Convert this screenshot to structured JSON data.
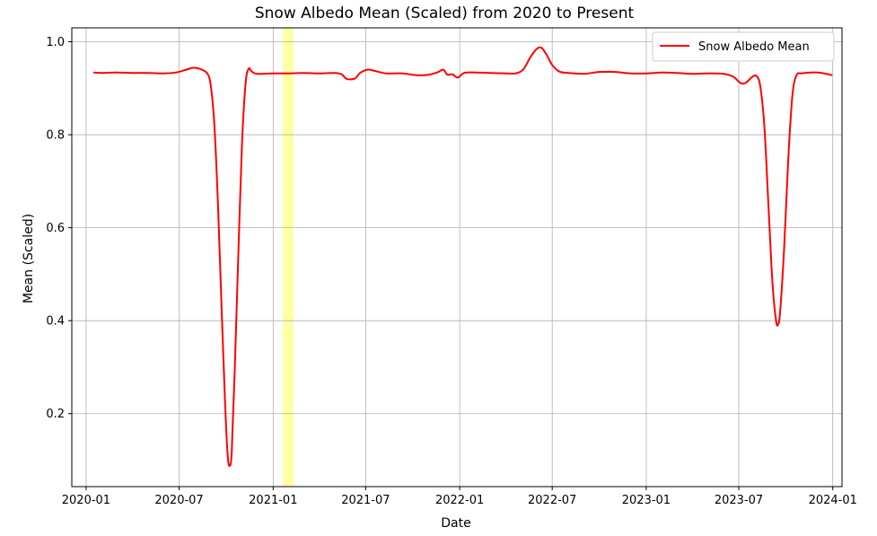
{
  "chart_data": {
    "type": "line",
    "title": "Snow Albedo Mean (Scaled) from 2020 to Present",
    "xlabel": "Date",
    "ylabel": "Mean (Scaled)",
    "xlim": [
      "2019-12-04",
      "2024-01-19"
    ],
    "ylim": [
      0.043,
      1.03
    ],
    "x_ticks": [
      "2020-01",
      "2020-07",
      "2021-01",
      "2021-07",
      "2022-01",
      "2022-07",
      "2023-01",
      "2023-07",
      "2024-01"
    ],
    "y_ticks": [
      0.2,
      0.4,
      0.6,
      0.8,
      1.0
    ],
    "y_tick_labels": [
      "0.2",
      "0.4",
      "0.6",
      "0.8",
      "1.0"
    ],
    "grid": true,
    "legend": {
      "placement": "top-right"
    },
    "highlight_span": {
      "start": "2021-01-20",
      "end": "2021-02-10",
      "color": "#ffff99"
    },
    "series": [
      {
        "name": "Snow Albedo Mean",
        "color": "#ff0000",
        "points": [
          [
            "2020-01-15",
            0.934
          ],
          [
            "2020-02-01",
            0.933
          ],
          [
            "2020-03-01",
            0.934
          ],
          [
            "2020-04-01",
            0.933
          ],
          [
            "2020-05-01",
            0.933
          ],
          [
            "2020-06-01",
            0.932
          ],
          [
            "2020-06-25",
            0.934
          ],
          [
            "2020-07-15",
            0.94
          ],
          [
            "2020-07-28",
            0.944
          ],
          [
            "2020-08-10",
            0.942
          ],
          [
            "2020-08-25",
            0.932
          ],
          [
            "2020-09-01",
            0.905
          ],
          [
            "2020-09-08",
            0.82
          ],
          [
            "2020-09-15",
            0.65
          ],
          [
            "2020-09-22",
            0.43
          ],
          [
            "2020-09-29",
            0.22
          ],
          [
            "2020-10-04",
            0.11
          ],
          [
            "2020-10-08",
            0.088
          ],
          [
            "2020-10-12",
            0.12
          ],
          [
            "2020-10-18",
            0.3
          ],
          [
            "2020-10-25",
            0.55
          ],
          [
            "2020-11-01",
            0.78
          ],
          [
            "2020-11-08",
            0.91
          ],
          [
            "2020-11-14",
            0.942
          ],
          [
            "2020-11-20",
            0.936
          ],
          [
            "2020-12-01",
            0.931
          ],
          [
            "2021-01-01",
            0.932
          ],
          [
            "2021-02-01",
            0.932
          ],
          [
            "2021-03-01",
            0.933
          ],
          [
            "2021-04-01",
            0.932
          ],
          [
            "2021-05-01",
            0.933
          ],
          [
            "2021-05-15",
            0.93
          ],
          [
            "2021-05-25",
            0.92
          ],
          [
            "2021-06-10",
            0.921
          ],
          [
            "2021-06-20",
            0.933
          ],
          [
            "2021-07-05",
            0.94
          ],
          [
            "2021-07-20",
            0.937
          ],
          [
            "2021-08-10",
            0.932
          ],
          [
            "2021-09-10",
            0.932
          ],
          [
            "2021-10-10",
            0.928
          ],
          [
            "2021-11-01",
            0.929
          ],
          [
            "2021-11-20",
            0.935
          ],
          [
            "2021-11-30",
            0.94
          ],
          [
            "2021-12-08",
            0.929
          ],
          [
            "2021-12-18",
            0.93
          ],
          [
            "2021-12-28",
            0.923
          ],
          [
            "2022-01-10",
            0.933
          ],
          [
            "2022-02-01",
            0.934
          ],
          [
            "2022-03-01",
            0.933
          ],
          [
            "2022-04-01",
            0.932
          ],
          [
            "2022-04-20",
            0.932
          ],
          [
            "2022-05-05",
            0.94
          ],
          [
            "2022-05-20",
            0.968
          ],
          [
            "2022-06-01",
            0.985
          ],
          [
            "2022-06-10",
            0.987
          ],
          [
            "2022-06-20",
            0.972
          ],
          [
            "2022-07-01",
            0.95
          ],
          [
            "2022-07-15",
            0.936
          ],
          [
            "2022-08-01",
            0.933
          ],
          [
            "2022-09-01",
            0.931
          ],
          [
            "2022-10-01",
            0.935
          ],
          [
            "2022-11-01",
            0.935
          ],
          [
            "2022-12-01",
            0.932
          ],
          [
            "2023-01-01",
            0.932
          ],
          [
            "2023-02-01",
            0.934
          ],
          [
            "2023-03-01",
            0.933
          ],
          [
            "2023-04-01",
            0.931
          ],
          [
            "2023-05-01",
            0.932
          ],
          [
            "2023-06-01",
            0.931
          ],
          [
            "2023-06-20",
            0.925
          ],
          [
            "2023-07-05",
            0.911
          ],
          [
            "2023-07-15",
            0.912
          ],
          [
            "2023-07-28",
            0.925
          ],
          [
            "2023-08-05",
            0.926
          ],
          [
            "2023-08-12",
            0.905
          ],
          [
            "2023-08-20",
            0.82
          ],
          [
            "2023-08-28",
            0.65
          ],
          [
            "2023-09-05",
            0.48
          ],
          [
            "2023-09-12",
            0.4
          ],
          [
            "2023-09-16",
            0.392
          ],
          [
            "2023-09-20",
            0.42
          ],
          [
            "2023-09-28",
            0.56
          ],
          [
            "2023-10-06",
            0.75
          ],
          [
            "2023-10-14",
            0.885
          ],
          [
            "2023-10-22",
            0.928
          ],
          [
            "2023-11-01",
            0.932
          ],
          [
            "2023-11-20",
            0.934
          ],
          [
            "2023-12-10",
            0.933
          ],
          [
            "2023-12-31",
            0.928
          ]
        ]
      }
    ]
  }
}
